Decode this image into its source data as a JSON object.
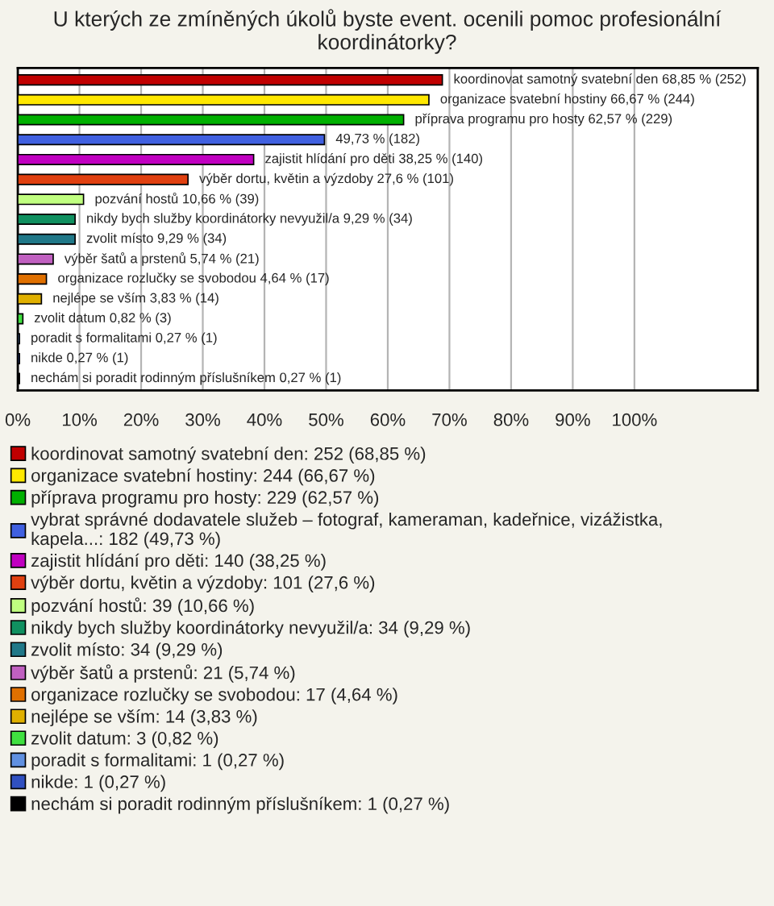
{
  "chart_data": {
    "type": "bar",
    "orientation": "horizontal",
    "title": "U kterých ze zmíněných úkolů byste event. ocenili pomoc profesionální koordinátorky?",
    "categories": [
      null,
      null,
      null,
      null,
      null,
      null,
      null,
      null,
      null,
      null,
      null,
      null,
      null,
      null,
      null,
      null
    ],
    "series": [
      {
        "name": "koordinovat samotný svatební den: 252 (68,85 %)",
        "color": "#c00000",
        "values": [
          68.85,
          null,
          null,
          null,
          null,
          null,
          null,
          null,
          null,
          null,
          null,
          null,
          null,
          null,
          null,
          null
        ],
        "value_labels": [
          "koordinovat samotný svatební den 68,85 % (252)",
          null,
          null,
          null,
          null,
          null,
          null,
          null,
          null,
          null,
          null,
          null,
          null,
          null,
          null,
          null
        ]
      },
      {
        "name": "organizace svatební hostiny: 244 (66,67 %)",
        "color": "#ffe800",
        "values": [
          null,
          66.67,
          null,
          null,
          null,
          null,
          null,
          null,
          null,
          null,
          null,
          null,
          null,
          null,
          null,
          null
        ],
        "value_labels": [
          null,
          "organizace svatební hostiny 66,67 % (244)",
          null,
          null,
          null,
          null,
          null,
          null,
          null,
          null,
          null,
          null,
          null,
          null,
          null,
          null
        ]
      },
      {
        "name": "příprava programu pro hosty: 229 (62,57 %)",
        "color": "#00b000",
        "values": [
          null,
          null,
          62.57,
          null,
          null,
          null,
          null,
          null,
          null,
          null,
          null,
          null,
          null,
          null,
          null,
          null
        ],
        "value_labels": [
          null,
          null,
          "příprava programu pro hosty 62,57 % (229)",
          null,
          null,
          null,
          null,
          null,
          null,
          null,
          null,
          null,
          null,
          null,
          null,
          null
        ]
      },
      {
        "name": "vybrat správné dodavatele služeb – fotograf, kameraman, kadeřnice, vizážistka, kapela...: 182 (49,73 %)",
        "color": "#4060e0",
        "values": [
          null,
          null,
          null,
          49.73,
          null,
          null,
          null,
          null,
          null,
          null,
          null,
          null,
          null,
          null,
          null,
          null
        ],
        "value_labels": [
          null,
          null,
          null,
          "49,73 % (182)",
          null,
          null,
          null,
          null,
          null,
          null,
          null,
          null,
          null,
          null,
          null,
          null
        ]
      },
      {
        "name": "zajistit hlídání pro děti: 140 (38,25 %)",
        "color": "#c000c0",
        "values": [
          null,
          null,
          null,
          null,
          38.25,
          null,
          null,
          null,
          null,
          null,
          null,
          null,
          null,
          null,
          null,
          null
        ],
        "value_labels": [
          null,
          null,
          null,
          null,
          "zajistit hlídání pro děti 38,25 % (140)",
          null,
          null,
          null,
          null,
          null,
          null,
          null,
          null,
          null,
          null,
          null
        ]
      },
      {
        "name": "výběr dortu, květin a výzdoby: 101 (27,6 %)",
        "color": "#e04010",
        "values": [
          null,
          null,
          null,
          null,
          null,
          27.6,
          null,
          null,
          null,
          null,
          null,
          null,
          null,
          null,
          null,
          null
        ],
        "value_labels": [
          null,
          null,
          null,
          null,
          null,
          "výběr dortu, květin a výzdoby 27,6 % (101)",
          null,
          null,
          null,
          null,
          null,
          null,
          null,
          null,
          null,
          null
        ]
      },
      {
        "name": "pozvání hostů: 39 (10,66 %)",
        "color": "#c0ff80",
        "values": [
          null,
          null,
          null,
          null,
          null,
          null,
          10.66,
          null,
          null,
          null,
          null,
          null,
          null,
          null,
          null,
          null
        ],
        "value_labels": [
          null,
          null,
          null,
          null,
          null,
          null,
          "pozvání hostů 10,66 % (39)",
          null,
          null,
          null,
          null,
          null,
          null,
          null,
          null,
          null
        ]
      },
      {
        "name": "nikdy bych služby koordinátorky nevyužil/a: 34 (9,29 %)",
        "color": "#109060",
        "values": [
          null,
          null,
          null,
          null,
          null,
          null,
          null,
          9.29,
          null,
          null,
          null,
          null,
          null,
          null,
          null,
          null
        ],
        "value_labels": [
          null,
          null,
          null,
          null,
          null,
          null,
          null,
          "nikdy bych služby koordinátorky nevyužil/a 9,29 % (34)",
          null,
          null,
          null,
          null,
          null,
          null,
          null,
          null
        ]
      },
      {
        "name": "zvolit místo: 34 (9,29 %)",
        "color": "#207888",
        "values": [
          null,
          null,
          null,
          null,
          null,
          null,
          null,
          null,
          9.29,
          null,
          null,
          null,
          null,
          null,
          null,
          null
        ],
        "value_labels": [
          null,
          null,
          null,
          null,
          null,
          null,
          null,
          null,
          "zvolit místo 9,29 % (34)",
          null,
          null,
          null,
          null,
          null,
          null,
          null
        ]
      },
      {
        "name": "výběr šatů a prstenů: 21 (5,74 %)",
        "color": "#c060c0",
        "values": [
          null,
          null,
          null,
          null,
          null,
          null,
          null,
          null,
          null,
          5.74,
          null,
          null,
          null,
          null,
          null,
          null
        ],
        "value_labels": [
          null,
          null,
          null,
          null,
          null,
          null,
          null,
          null,
          null,
          "výběr šatů a prstenů 5,74 % (21)",
          null,
          null,
          null,
          null,
          null,
          null
        ]
      },
      {
        "name": "organizace rozlučky se svobodou: 17 (4,64 %)",
        "color": "#e07000",
        "values": [
          null,
          null,
          null,
          null,
          null,
          null,
          null,
          null,
          null,
          null,
          4.64,
          null,
          null,
          null,
          null,
          null
        ],
        "value_labels": [
          null,
          null,
          null,
          null,
          null,
          null,
          null,
          null,
          null,
          null,
          "organizace rozlučky se svobodou 4,64 % (17)",
          null,
          null,
          null,
          null,
          null
        ]
      },
      {
        "name": "nejlépe se vším: 14 (3,83 %)",
        "color": "#e0b000",
        "values": [
          null,
          null,
          null,
          null,
          null,
          null,
          null,
          null,
          null,
          null,
          null,
          3.83,
          null,
          null,
          null,
          null
        ],
        "value_labels": [
          null,
          null,
          null,
          null,
          null,
          null,
          null,
          null,
          null,
          null,
          null,
          "nejlépe se vším 3,83 % (14)",
          null,
          null,
          null,
          null
        ]
      },
      {
        "name": "zvolit datum: 3 (0,82 %)",
        "color": "#40e040",
        "values": [
          null,
          null,
          null,
          null,
          null,
          null,
          null,
          null,
          null,
          null,
          null,
          null,
          0.82,
          null,
          null,
          null
        ],
        "value_labels": [
          null,
          null,
          null,
          null,
          null,
          null,
          null,
          null,
          null,
          null,
          null,
          null,
          "zvolit datum 0,82 % (3)",
          null,
          null,
          null
        ]
      },
      {
        "name": "poradit s formalitami: 1 (0,27 %)",
        "color": "#6090e0",
        "values": [
          null,
          null,
          null,
          null,
          null,
          null,
          null,
          null,
          null,
          null,
          null,
          null,
          null,
          0.27,
          null,
          null
        ],
        "value_labels": [
          null,
          null,
          null,
          null,
          null,
          null,
          null,
          null,
          null,
          null,
          null,
          null,
          null,
          "poradit s formalitami 0,27 % (1)",
          null,
          null
        ]
      },
      {
        "name": "nikde: 1 (0,27 %)",
        "color": "#3050c0",
        "values": [
          null,
          null,
          null,
          null,
          null,
          null,
          null,
          null,
          null,
          null,
          null,
          null,
          null,
          null,
          0.27,
          null
        ],
        "value_labels": [
          null,
          null,
          null,
          null,
          null,
          null,
          null,
          null,
          null,
          null,
          null,
          null,
          null,
          null,
          "nikde 0,27 % (1)",
          null
        ]
      },
      {
        "name": "nechám si poradit rodinným příslušníkem: 1 (0,27 %)",
        "color": "#000000",
        "values": [
          null,
          null,
          null,
          null,
          null,
          null,
          null,
          null,
          null,
          null,
          null,
          null,
          null,
          null,
          null,
          0.27
        ],
        "value_labels": [
          null,
          null,
          null,
          null,
          null,
          null,
          null,
          null,
          null,
          null,
          null,
          null,
          null,
          null,
          null,
          "nechám si poradit rodinným příslušníkem 0,27 % (1)"
        ]
      }
    ],
    "xlim": [
      0,
      120
    ],
    "xticks": [
      {
        "value": 0,
        "label": "0%"
      },
      {
        "value": 10,
        "label": "10%"
      },
      {
        "value": 20,
        "label": "20%"
      },
      {
        "value": 30,
        "label": "30%"
      },
      {
        "value": 40,
        "label": "40%"
      },
      {
        "value": 50,
        "label": "50%"
      },
      {
        "value": 60,
        "label": "60%"
      },
      {
        "value": 70,
        "label": "70%"
      },
      {
        "value": 80,
        "label": "80%"
      },
      {
        "value": 90,
        "label": "90%"
      },
      {
        "value": 100,
        "label": "100%"
      }
    ],
    "grid": "x",
    "tick_labels": "x",
    "legend": "bottom"
  }
}
